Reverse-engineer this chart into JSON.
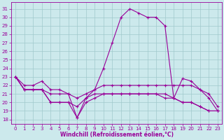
{
  "xlabel": "Windchill (Refroidissement éolien,°C)",
  "bg_color": "#cce9ec",
  "line_color": "#990099",
  "grid_color": "#a0c8cc",
  "xlim": [
    -0.5,
    23.5
  ],
  "ylim": [
    17.5,
    31.8
  ],
  "yticks": [
    18,
    19,
    20,
    21,
    22,
    23,
    24,
    25,
    26,
    27,
    28,
    29,
    30,
    31
  ],
  "xticks": [
    0,
    1,
    2,
    3,
    4,
    5,
    6,
    7,
    8,
    9,
    10,
    11,
    12,
    13,
    14,
    15,
    16,
    17,
    18,
    19,
    20,
    21,
    22,
    23
  ],
  "curves": [
    [
      0,
      23,
      1,
      22,
      2,
      22,
      3,
      22.5,
      4,
      21.5,
      5,
      21.5,
      6,
      21,
      7,
      20.5,
      8,
      21,
      9,
      21.5,
      10,
      22,
      11,
      22,
      12,
      22,
      13,
      22,
      14,
      22,
      15,
      22,
      16,
      22,
      17,
      22,
      18,
      22,
      19,
      22,
      20,
      22,
      21,
      21.5,
      22,
      21,
      23,
      19.5
    ],
    [
      0,
      23,
      1,
      21.5,
      2,
      21.5,
      3,
      21.5,
      4,
      21,
      5,
      21,
      6,
      21,
      7,
      18.2,
      8,
      20.5,
      9,
      21.5,
      10,
      24,
      11,
      27,
      12,
      30,
      13,
      31,
      14,
      30.5,
      15,
      30,
      16,
      30,
      17,
      29,
      18,
      20.5,
      19,
      22.8,
      20,
      22.5,
      21,
      21.5,
      22,
      20.5,
      23,
      19
    ],
    [
      0,
      23,
      1,
      21.5,
      2,
      21.5,
      3,
      21.5,
      4,
      20,
      5,
      20,
      6,
      20,
      7,
      19.5,
      8,
      20.5,
      9,
      21,
      10,
      21,
      11,
      21,
      12,
      21,
      13,
      21,
      14,
      21,
      15,
      21,
      16,
      21,
      17,
      21,
      18,
      20.5,
      19,
      20,
      20,
      20,
      21,
      19.5,
      22,
      19,
      23,
      19
    ],
    [
      0,
      23,
      1,
      21.5,
      2,
      21.5,
      3,
      21.5,
      4,
      20,
      5,
      20,
      6,
      20,
      7,
      18.2,
      8,
      20,
      9,
      20.5,
      10,
      21,
      11,
      21,
      12,
      21,
      13,
      21,
      14,
      21,
      15,
      21,
      16,
      21,
      17,
      20.5,
      18,
      20.5,
      19,
      20,
      20,
      20,
      21,
      19.5,
      22,
      19,
      23,
      19
    ]
  ]
}
